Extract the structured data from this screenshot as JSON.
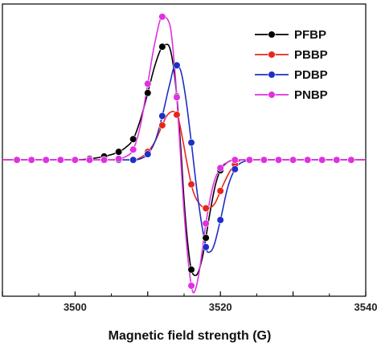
{
  "chart_data": {
    "type": "line",
    "xlabel": "Magnetic field strength (G)",
    "ylabel": "",
    "xlim": [
      3490,
      3540
    ],
    "ylim": [
      -1.18,
      1.35
    ],
    "grid": false,
    "legend_position": "top-right",
    "x_ticks": [
      3500,
      3520,
      3540
    ],
    "x_tick_labels": [
      "3500",
      "3520",
      "3540"
    ],
    "series": [
      {
        "name": "PFBP",
        "color": "#000000",
        "marker_x": [
          3492,
          3494,
          3496,
          3498,
          3500,
          3502,
          3504,
          3506,
          3508,
          3510,
          3512,
          3514,
          3516,
          3518,
          3520,
          3522,
          3524,
          3526,
          3528,
          3530,
          3532,
          3534,
          3536,
          3538
        ],
        "x": [
          3490,
          3500,
          3502,
          3504,
          3506,
          3507,
          3508,
          3509,
          3510,
          3511,
          3512,
          3512.7,
          3513.3,
          3514,
          3514.6,
          3515,
          3515.5,
          3516,
          3516.6,
          3517.5,
          3518.5,
          3519.3,
          3520,
          3521,
          3522,
          3524,
          3530,
          3540
        ],
        "y": [
          0,
          0,
          0.01,
          0.03,
          0.07,
          0.11,
          0.18,
          0.35,
          0.58,
          0.82,
          0.98,
          1.0,
          0.9,
          0.55,
          0.05,
          -0.35,
          -0.72,
          -0.95,
          -1.0,
          -0.85,
          -0.48,
          -0.22,
          -0.09,
          -0.02,
          0,
          0,
          0,
          0
        ]
      },
      {
        "name": "PBBP",
        "color": "#e8261c",
        "marker_x": [
          3492,
          3494,
          3496,
          3498,
          3500,
          3502,
          3504,
          3506,
          3508,
          3510,
          3512,
          3514,
          3516,
          3518,
          3520,
          3522,
          3524,
          3526,
          3528,
          3530,
          3532,
          3534,
          3536,
          3538
        ],
        "x": [
          3490,
          3508,
          3509,
          3510,
          3511,
          3512,
          3512.6,
          3513.5,
          3514.2,
          3514.8,
          3515.5,
          3516.2,
          3517,
          3518.2,
          3519.2,
          3520.2,
          3521.5,
          3523,
          3540
        ],
        "y": [
          0,
          0,
          0.02,
          0.07,
          0.16,
          0.3,
          0.38,
          0.42,
          0.36,
          0.18,
          -0.06,
          -0.26,
          -0.37,
          -0.42,
          -0.38,
          -0.24,
          -0.08,
          0,
          0
        ]
      },
      {
        "name": "PDBP",
        "color": "#1e2ec8",
        "marker_x": [
          3492,
          3494,
          3496,
          3498,
          3500,
          3502,
          3504,
          3506,
          3508,
          3510,
          3512,
          3514,
          3516,
          3518,
          3520,
          3522,
          3524,
          3526,
          3528,
          3530,
          3532,
          3534,
          3536,
          3538
        ],
        "x": [
          3490,
          3508,
          3509,
          3510,
          3511,
          3512,
          3513,
          3513.8,
          3514.5,
          3515.2,
          3516,
          3516.8,
          3517.6,
          3518.3,
          3519,
          3520,
          3521,
          3522,
          3523,
          3525,
          3540
        ],
        "y": [
          0,
          0,
          0.01,
          0.05,
          0.16,
          0.38,
          0.65,
          0.82,
          0.78,
          0.55,
          0.15,
          -0.28,
          -0.62,
          -0.8,
          -0.76,
          -0.52,
          -0.24,
          -0.08,
          -0.02,
          0,
          0
        ]
      },
      {
        "name": "PNBP",
        "color": "#e030e0",
        "marker_x": [
          3492,
          3494,
          3496,
          3498,
          3500,
          3502,
          3504,
          3506,
          3508,
          3510,
          3512,
          3514,
          3516,
          3518,
          3520,
          3522,
          3524,
          3526,
          3528,
          3530,
          3532,
          3534,
          3536,
          3538
        ],
        "x": [
          3490,
          3505,
          3506,
          3507,
          3508,
          3509,
          3510,
          3511,
          3512,
          3513,
          3513.7,
          3514.3,
          3515,
          3515.7,
          3516.3,
          3517,
          3518,
          3519,
          3520,
          3521,
          3522,
          3523,
          3540
        ],
        "y": [
          0,
          0,
          0.01,
          0.03,
          0.09,
          0.3,
          0.66,
          1.02,
          1.24,
          1.18,
          0.8,
          0.25,
          -0.45,
          -0.95,
          -1.15,
          -1.0,
          -0.55,
          -0.22,
          -0.07,
          -0.02,
          0,
          0,
          0
        ]
      }
    ]
  }
}
